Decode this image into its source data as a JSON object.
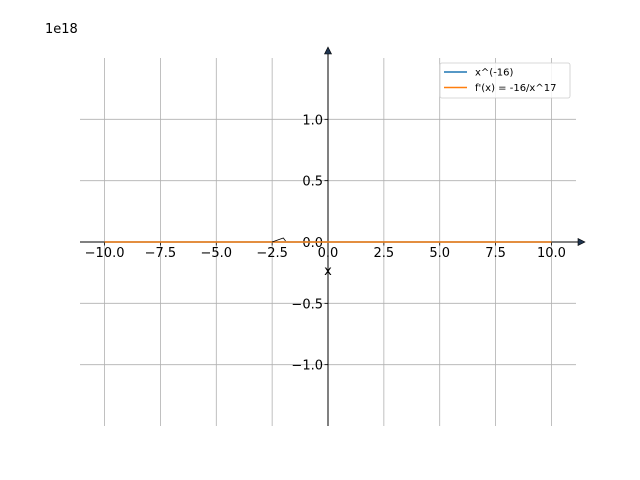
{
  "chart_data": {
    "type": "line",
    "title": "",
    "xlabel": "x",
    "ylabel": "",
    "y_offset_label": "1e18",
    "xlim": [
      -11.1,
      11.1
    ],
    "ylim": [
      -1.5,
      1.5
    ],
    "x_ticks": [
      -10,
      -7.5,
      -5,
      -2.5,
      0,
      2.5,
      5,
      7.5,
      10
    ],
    "x_tick_labels": [
      "−10.0",
      "−7.5",
      "−5.0",
      "−2.5",
      "0.0",
      "2.5",
      "5.0",
      "7.5",
      "10.0"
    ],
    "y_ticks": [
      -1.0,
      -0.5,
      0.0,
      0.5,
      1.0
    ],
    "y_tick_labels": [
      "−1.0",
      "−0.5",
      "0.0",
      "0.5",
      "1.0"
    ],
    "grid": true,
    "legend_position": "top-right",
    "series": [
      {
        "name": "x^(-16)",
        "color": "#1f77b4",
        "x": [
          -10,
          -7.5,
          -5,
          -2.5,
          -1,
          -0.5,
          0.5,
          1,
          2.5,
          5,
          7.5,
          10
        ],
        "y": [
          0,
          0,
          0,
          0,
          0,
          0,
          0,
          0,
          0,
          0,
          0,
          0
        ]
      },
      {
        "name": "f'(x) = -16/x^17",
        "color": "#ff7f0e",
        "x": [
          -10,
          -7.5,
          -5,
          -2.5,
          -1,
          -0.5,
          0.5,
          1,
          2.5,
          5,
          7.5,
          10
        ],
        "y": [
          0,
          0,
          0,
          0,
          0,
          0,
          0,
          0,
          0,
          0,
          0,
          0
        ]
      }
    ]
  },
  "colors": {
    "grid": "#b0b0b0",
    "axis": "#000000",
    "arrow_fill": "#1f3550"
  }
}
